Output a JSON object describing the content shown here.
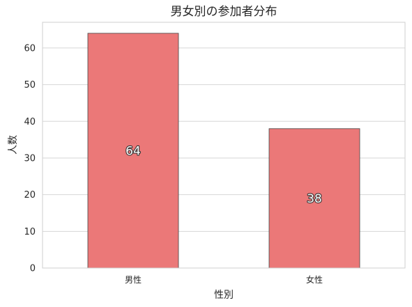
{
  "chart_data": {
    "type": "bar",
    "title": "男女別の参加者分布",
    "xlabel": "性別",
    "ylabel": "人数",
    "categories": [
      "男性",
      "女性"
    ],
    "values": [
      64,
      38
    ],
    "data_labels": [
      "64",
      "38"
    ],
    "ylim": [
      0,
      67
    ],
    "yticks": [
      0,
      10,
      20,
      30,
      40,
      50,
      60
    ],
    "grid": true,
    "legend": "none",
    "bar_color": "#eb7878",
    "bar_edge_color": "#444444"
  }
}
